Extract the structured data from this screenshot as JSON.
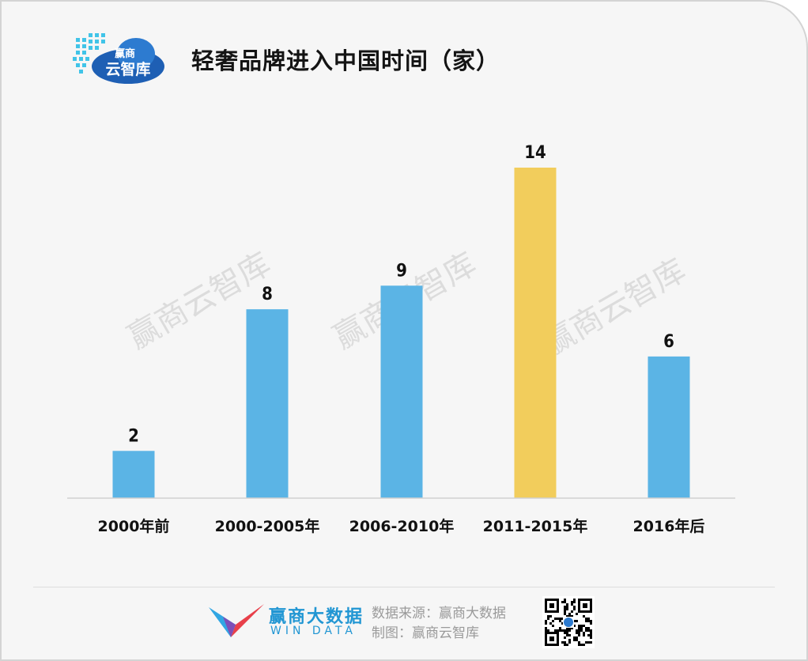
{
  "header": {
    "title": "轻奢品牌进入中国时间（家）",
    "logo_text_top": "赢商",
    "logo_text_bottom": "云智库"
  },
  "chart_data": {
    "type": "bar",
    "title": "轻奢品牌进入中国时间（家）",
    "xlabel": "",
    "ylabel": "",
    "categories": [
      "2000年前",
      "2000-2005年",
      "2006-2010年",
      "2011-2015年",
      "2016年后"
    ],
    "values": [
      2,
      8,
      9,
      14,
      6
    ],
    "ylim": [
      0,
      14
    ],
    "colors": [
      "#5bb4e5",
      "#5bb4e5",
      "#5bb4e5",
      "#f2cd5c",
      "#5bb4e5"
    ],
    "grid": false,
    "legend": "none"
  },
  "watermark": "赢商云智库",
  "footer": {
    "brand_name": "赢商大数据",
    "brand_sub": "WIN DATA",
    "source_line": "数据来源：赢商大数据",
    "made_by_line": "制图：赢商云智库"
  },
  "colors": {
    "bar": "#5bb4e5",
    "highlight_bar": "#f2cd5c",
    "brand": "#2196d3"
  }
}
